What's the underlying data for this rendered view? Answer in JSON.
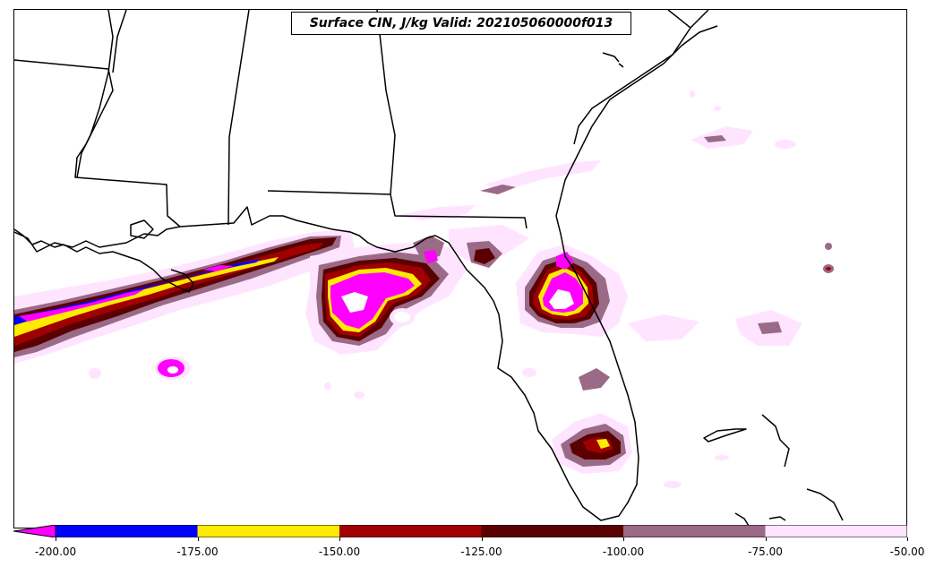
{
  "title": "Surface CIN, J/kg Valid: 202105060000f013",
  "colorbar": {
    "ticks": [
      "-200.00",
      "-175.00",
      "-150.00",
      "-125.00",
      "-100.00",
      "-75.00",
      "-50.00"
    ],
    "tick_values": [
      -200,
      -175,
      -150,
      -125,
      -100,
      -75,
      -50
    ],
    "range": [
      -200,
      -50
    ],
    "extend": "min",
    "colors": [
      "#ff00ff",
      "#0000ff",
      "#ffea00",
      "#a00000",
      "#5a0000",
      "#9a6a86",
      "#ffe4ff"
    ],
    "bins": [
      {
        "from": -200,
        "to": -175,
        "color": "#0000ff"
      },
      {
        "from": -175,
        "to": -150,
        "color": "#ffea00"
      },
      {
        "from": -150,
        "to": -125,
        "color": "#a00000"
      },
      {
        "from": -125,
        "to": -100,
        "color": "#5a0000"
      },
      {
        "from": -100,
        "to": -75,
        "color": "#9a6a86"
      },
      {
        "from": -75,
        "to": -50,
        "color": "#ffe4ff"
      }
    ],
    "under_color": "#ff00ff"
  }
}
